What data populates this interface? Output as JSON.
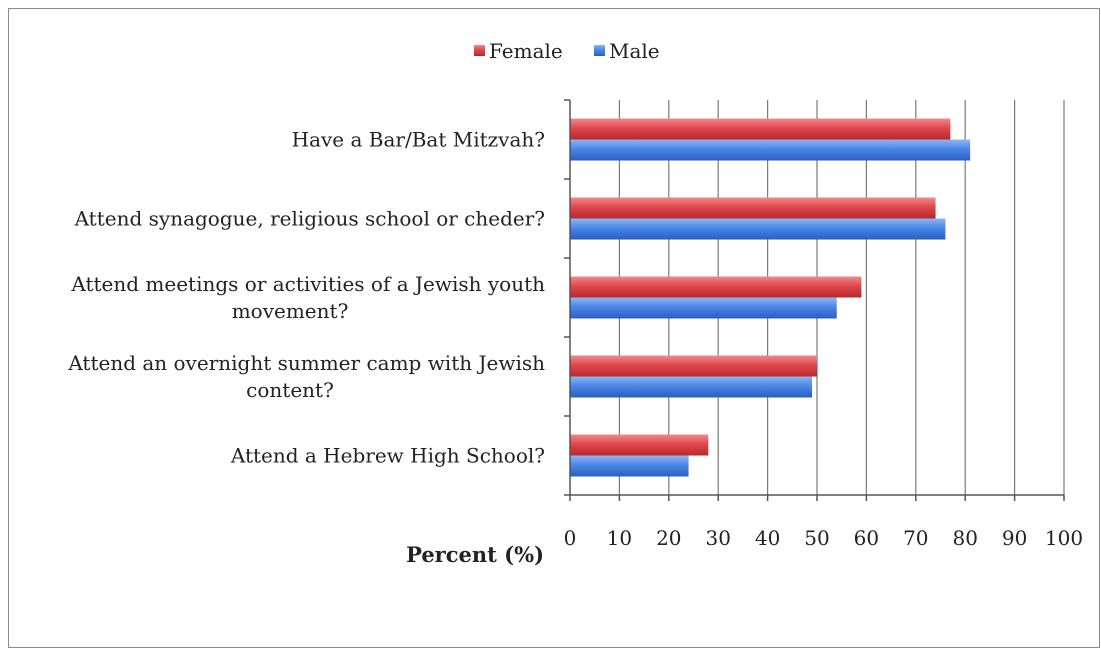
{
  "chart_data": {
    "type": "bar",
    "orientation": "horizontal",
    "categories": [
      "Have a Bar/Bat Mitzvah?",
      "Attend synagogue, religious school or cheder?",
      "Attend meetings or activities of a Jewish youth movement?",
      "Attend an overnight summer camp with Jewish content?",
      "Attend a Hebrew High School?"
    ],
    "category_lines": [
      [
        "Have a Bar/Bat Mitzvah?"
      ],
      [
        "Attend synagogue, religious school or cheder?"
      ],
      [
        "Attend meetings or activities of a Jewish youth",
        "movement?"
      ],
      [
        "Attend an overnight summer camp with Jewish",
        "content?"
      ],
      [
        "Attend a Hebrew High School?"
      ]
    ],
    "series": [
      {
        "name": "Female",
        "color": "#e0474c",
        "values": [
          77,
          74,
          59,
          50,
          28
        ]
      },
      {
        "name": "Male",
        "color": "#4a86e8",
        "values": [
          81,
          76,
          54,
          49,
          24
        ]
      }
    ],
    "xlabel": "Percent (%)",
    "ylabel": "",
    "xlim": [
      0,
      100
    ],
    "xticks": [
      "0",
      "10",
      "20",
      "30",
      "40",
      "50",
      "60",
      "70",
      "80",
      "90",
      "100"
    ],
    "grid": true,
    "legend_position": "top"
  }
}
